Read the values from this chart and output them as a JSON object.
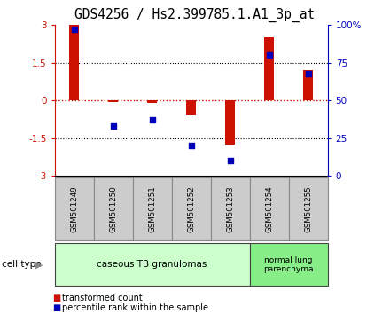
{
  "title": "GDS4256 / Hs2.399785.1.A1_3p_at",
  "samples": [
    "GSM501249",
    "GSM501250",
    "GSM501251",
    "GSM501252",
    "GSM501253",
    "GSM501254",
    "GSM501255"
  ],
  "transformed_count": [
    3.0,
    -0.05,
    -0.1,
    -0.6,
    -1.75,
    2.5,
    1.2
  ],
  "percentile_rank": [
    97,
    33,
    37,
    20,
    10,
    80,
    68
  ],
  "ylim_left": [
    -3,
    3
  ],
  "ylim_right": [
    0,
    100
  ],
  "yticks_left": [
    -3,
    -1.5,
    0,
    1.5,
    3
  ],
  "yticks_right": [
    0,
    25,
    50,
    75,
    100
  ],
  "ytick_labels_left": [
    "-3",
    "-1.5",
    "0",
    "1.5",
    "3"
  ],
  "ytick_labels_right": [
    "0",
    "25",
    "50",
    "75",
    "100%"
  ],
  "bar_color": "#cc1100",
  "dot_color": "#0000bb",
  "zero_line_color": "#cc1100",
  "group1_label": "caseous TB granulomas",
  "group2_label": "normal lung\nparenchyma",
  "group1_indices": [
    0,
    1,
    2,
    3,
    4
  ],
  "group2_indices": [
    5,
    6
  ],
  "group1_color": "#ccffcc",
  "group2_color": "#88ee88",
  "cell_type_label": "cell type",
  "legend_bar_label": "transformed count",
  "legend_dot_label": "percentile rank within the sample",
  "bg_color": "#ffffff",
  "plot_bg": "#ffffff",
  "sample_box_color": "#cccccc",
  "title_fontsize": 10.5,
  "axis_fontsize": 7.5,
  "label_fontsize": 7.5
}
